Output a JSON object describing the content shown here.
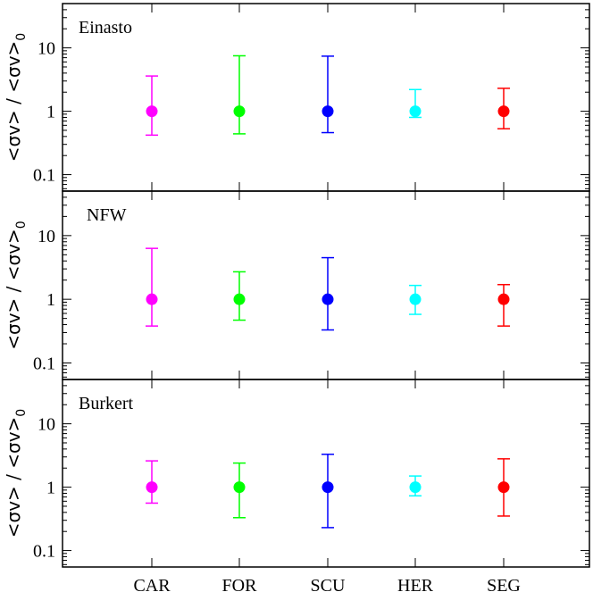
{
  "chart_data": {
    "type": "scatter",
    "categories": [
      "CAR",
      "FOR",
      "SCU",
      "HER",
      "SEG"
    ],
    "colors": {
      "CAR": "#ff00ff",
      "FOR": "#00ff00",
      "SCU": "#0000ff",
      "HER": "#00ffff",
      "SEG": "#ff0000"
    },
    "ylabel": "<σv> / <σv>",
    "ylabel_subscript": "0",
    "y_scale": "log",
    "ylim": [
      0.055,
      50
    ],
    "y_ticks": [
      0.1,
      1,
      10
    ],
    "y_tick_labels": [
      "0.1",
      "1",
      "10"
    ],
    "panels": [
      {
        "label": "Einasto",
        "points": [
          {
            "name": "CAR",
            "value": 1,
            "lower": 0.42,
            "upper": 3.6
          },
          {
            "name": "FOR",
            "value": 1,
            "lower": 0.44,
            "upper": 7.5
          },
          {
            "name": "SCU",
            "value": 1,
            "lower": 0.46,
            "upper": 7.4
          },
          {
            "name": "HER",
            "value": 1,
            "lower": 0.8,
            "upper": 2.2
          },
          {
            "name": "SEG",
            "value": 1,
            "lower": 0.53,
            "upper": 2.3
          }
        ]
      },
      {
        "label": "NFW",
        "points": [
          {
            "name": "CAR",
            "value": 1,
            "lower": 0.38,
            "upper": 6.3
          },
          {
            "name": "FOR",
            "value": 1,
            "lower": 0.47,
            "upper": 2.7
          },
          {
            "name": "SCU",
            "value": 1,
            "lower": 0.33,
            "upper": 4.5
          },
          {
            "name": "HER",
            "value": 1,
            "lower": 0.58,
            "upper": 1.65
          },
          {
            "name": "SEG",
            "value": 1,
            "lower": 0.38,
            "upper": 1.7
          }
        ]
      },
      {
        "label": "Burkert",
        "points": [
          {
            "name": "CAR",
            "value": 1,
            "lower": 0.56,
            "upper": 2.6
          },
          {
            "name": "FOR",
            "value": 1,
            "lower": 0.33,
            "upper": 2.4
          },
          {
            "name": "SCU",
            "value": 1,
            "lower": 0.23,
            "upper": 3.3
          },
          {
            "name": "HER",
            "value": 1,
            "lower": 0.73,
            "upper": 1.5
          },
          {
            "name": "SEG",
            "value": 1,
            "lower": 0.35,
            "upper": 2.8
          }
        ]
      }
    ]
  }
}
